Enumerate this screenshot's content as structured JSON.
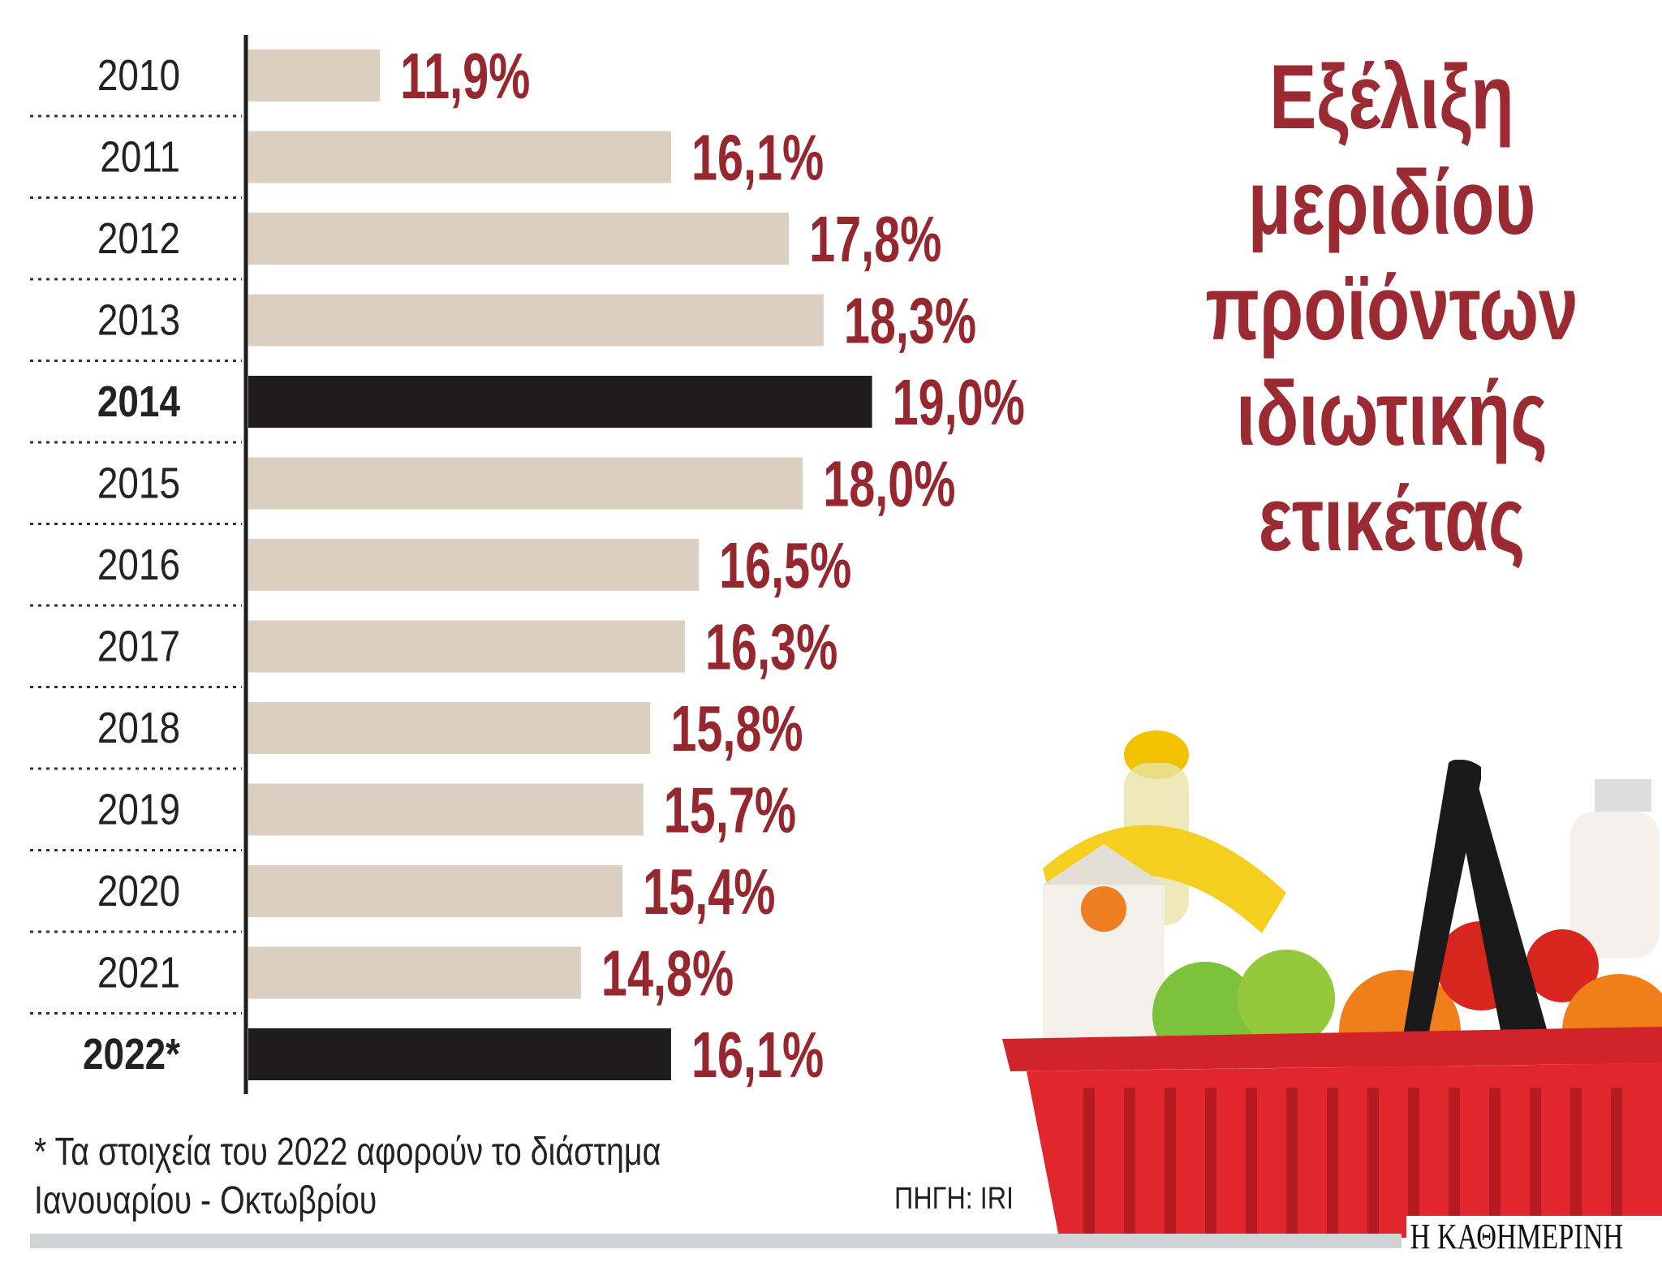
{
  "chart_data": {
    "type": "bar",
    "orientation": "horizontal",
    "title": "Εξέλιξη μεριδίου προϊόντων ιδιωτικής ετικέτας",
    "title_lines": [
      "Εξέλιξη",
      "μεριδίου",
      "προϊόντων",
      "ιδιωτικής",
      "ετικέτας"
    ],
    "categories": [
      "2010",
      "2011",
      "2012",
      "2013",
      "2014",
      "2015",
      "2016",
      "2017",
      "2018",
      "2019",
      "2020",
      "2021",
      "2022*"
    ],
    "values": [
      11.9,
      16.1,
      17.8,
      18.3,
      19.0,
      18.0,
      16.5,
      16.3,
      15.8,
      15.7,
      15.4,
      14.8,
      16.1
    ],
    "data_labels": [
      "11,9%",
      "16,1%",
      "17,8%",
      "18,3%",
      "19,0%",
      "18,0%",
      "16,5%",
      "16,3%",
      "15,8%",
      "15,7%",
      "15,4%",
      "14,8%",
      "16,1%"
    ],
    "highlighted": [
      "2014",
      "2022*"
    ],
    "xlim": [
      10,
      20
    ],
    "xlabel": "",
    "ylabel": "",
    "grid": false,
    "colors": {
      "bar": "#dbcfc2",
      "highlight_bar": "#1e1c1c",
      "label": "#96272f",
      "title": "#9b2a33"
    }
  },
  "footnote": [
    "* Τα στοιχεία του 2022 αφορούν το διάστημα",
    "Ιανουαρίου - Οκτωβρίου"
  ],
  "source": "ΠΗΓΗ: IRI",
  "logo": "Η ΚΑΘΗΜΕΡΙΝΗ",
  "illustration": "shopping-basket-with-groceries"
}
